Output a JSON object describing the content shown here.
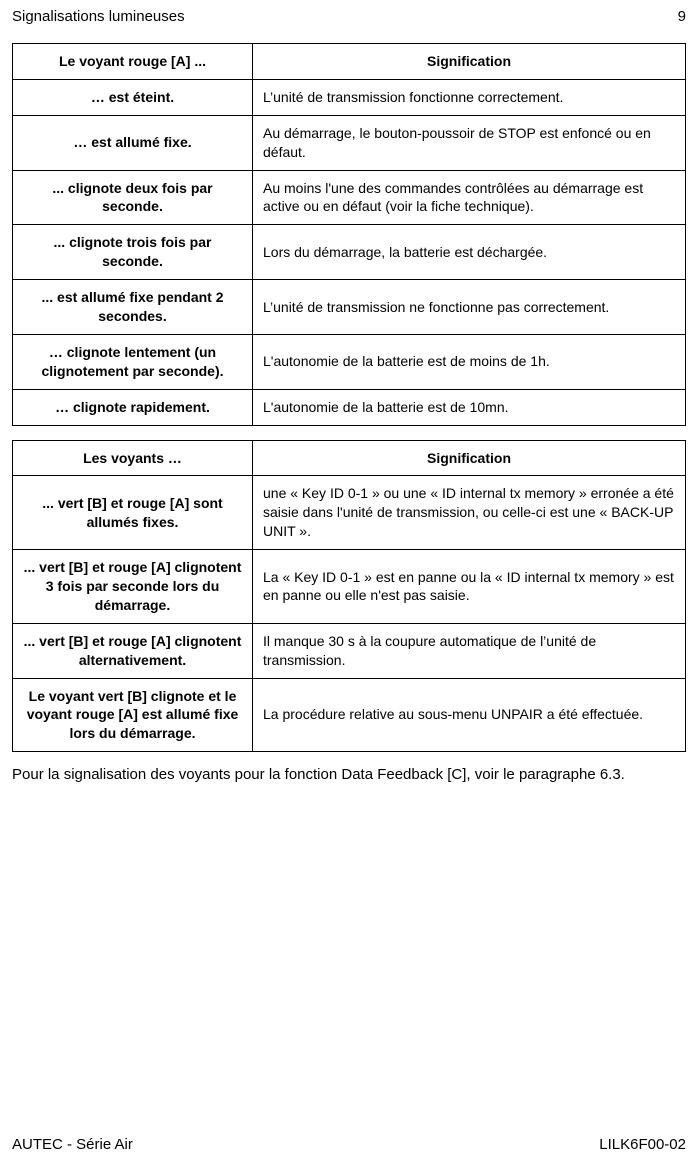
{
  "header": {
    "section_title": "Signalisations lumineuses",
    "page_number": "9"
  },
  "table1": {
    "head": {
      "left": "Le voyant rouge [A] ...",
      "right": "Signification"
    },
    "rows": [
      {
        "left": "… est éteint.",
        "right": "L’unité de transmission fonctionne correctement."
      },
      {
        "left": "… est allumé fixe.",
        "right": "Au démarrage, le bouton-poussoir de STOP est enfoncé ou en défaut."
      },
      {
        "left": "... clignote deux fois par seconde.",
        "right": "Au moins l'une des commandes contrôlées au démarrage est active ou en défaut (voir la fiche technique)."
      },
      {
        "left": "... clignote trois fois par seconde.",
        "right": "Lors du démarrage, la batterie est déchargée."
      },
      {
        "left": "... est allumé fixe pendant 2 secondes.",
        "right": "L’unité de transmission ne fonctionne pas correctement."
      },
      {
        "left": "… clignote lentement (un clignotement par seconde).",
        "right": "L'autonomie de la batterie est de moins de 1h."
      },
      {
        "left": "… clignote rapidement.",
        "right": "L'autonomie de la batterie est de 10mn."
      }
    ]
  },
  "table2": {
    "head": {
      "left": "Les voyants …",
      "right": "Signification"
    },
    "rows": [
      {
        "left": "... vert [B] et rouge [A] sont allumés fixes.",
        "right": "une « Key ID 0-1 » ou une « ID internal tx memory » erronée a été saisie dans l'unité de transmission, ou celle-ci est une « BACK-UP UNIT »."
      },
      {
        "left": "... vert [B] et rouge [A] clignotent 3 fois par seconde lors du démarrage.",
        "right": "La « Key ID 0-1 » est en panne ou la « ID internal tx memory » est en panne ou elle n'est pas saisie."
      },
      {
        "left": "... vert [B] et rouge [A] clignotent alternativement.",
        "right": "Il manque 30 s à la coupure automatique de l’unité de transmission."
      },
      {
        "left": "Le voyant vert [B] clignote et le voyant rouge [A] est allumé fixe lors du démarrage.",
        "right": "La procédure relative au sous-menu UNPAIR a été effectuée."
      }
    ]
  },
  "note_text": "Pour la signalisation des voyants pour la fonction Data Feedback [C], voir le paragraphe 6.3.",
  "footer": {
    "left": "AUTEC - Série Air",
    "right": "LILK6F00-02"
  }
}
